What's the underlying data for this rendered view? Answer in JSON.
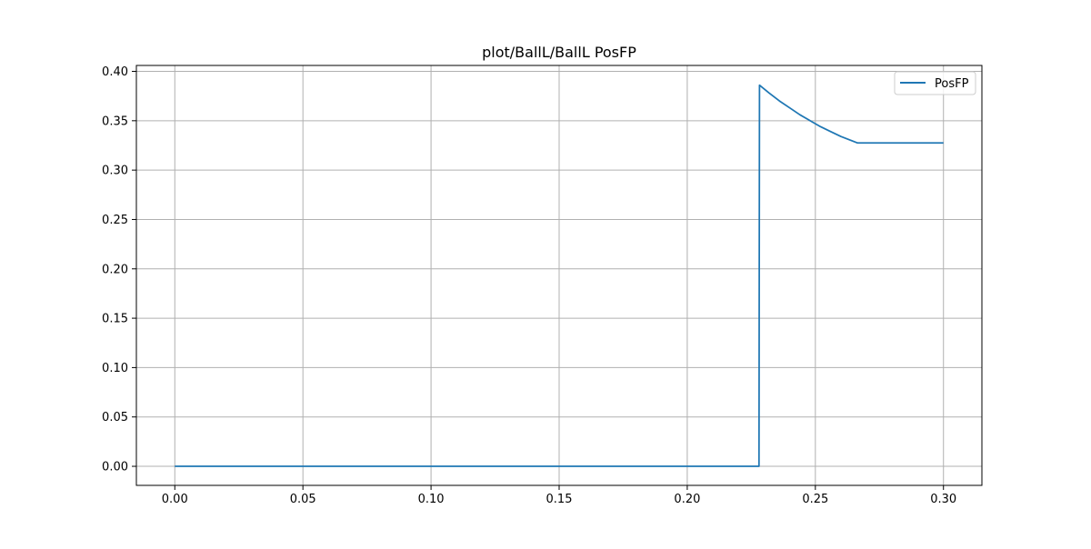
{
  "chart_data": {
    "type": "line",
    "title": "plot/BallL/BallL PosFP",
    "xlabel": "",
    "ylabel": "",
    "xlim": [
      -0.015,
      0.315
    ],
    "ylim": [
      -0.0193,
      0.406
    ],
    "xticks": [
      0.0,
      0.05,
      0.1,
      0.15,
      0.2,
      0.25,
      0.3
    ],
    "xtick_labels": [
      "0.00",
      "0.05",
      "0.10",
      "0.15",
      "0.20",
      "0.25",
      "0.30"
    ],
    "yticks": [
      0.0,
      0.05,
      0.1,
      0.15,
      0.2,
      0.25,
      0.3,
      0.35,
      0.4
    ],
    "ytick_labels": [
      "0.00",
      "0.05",
      "0.10",
      "0.15",
      "0.20",
      "0.25",
      "0.30",
      "0.35",
      "0.40"
    ],
    "grid": true,
    "legend_position": "top-right",
    "series": [
      {
        "name": "PosFP",
        "color": "#1f77b4",
        "x": [
          0.0,
          0.228,
          0.2282,
          0.232,
          0.236,
          0.24,
          0.244,
          0.248,
          0.252,
          0.256,
          0.26,
          0.264,
          0.2665,
          0.27,
          0.28,
          0.29,
          0.3
        ],
        "y": [
          0.0,
          0.0,
          0.386,
          0.378,
          0.37,
          0.363,
          0.356,
          0.35,
          0.344,
          0.339,
          0.334,
          0.33,
          0.3275,
          0.3275,
          0.3275,
          0.3275,
          0.3275
        ]
      }
    ]
  }
}
